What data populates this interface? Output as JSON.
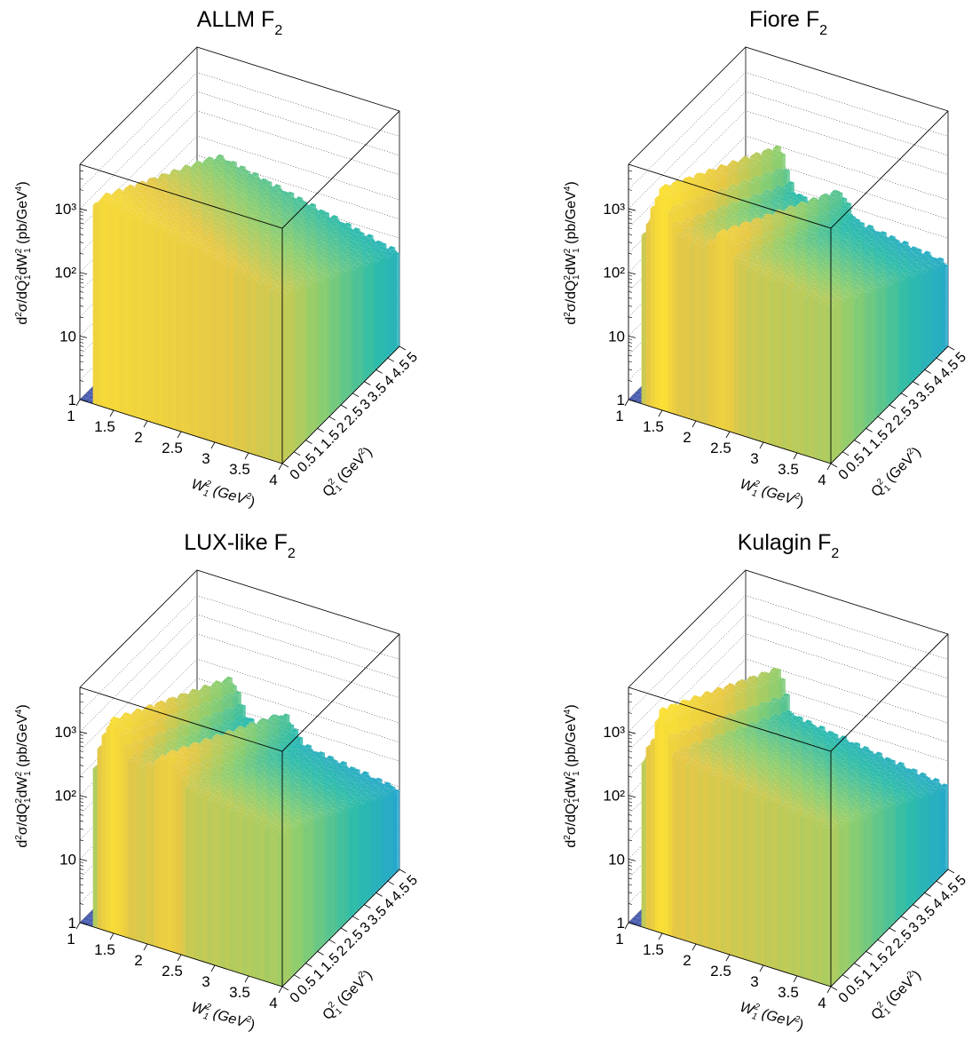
{
  "figure": {
    "panels": [
      {
        "title_main": "ALLM F",
        "title_sub": "2"
      },
      {
        "title_main": "Fiore F",
        "title_sub": "2"
      },
      {
        "title_main": "LUX-like F",
        "title_sub": "2"
      },
      {
        "title_main": "Kulagin F",
        "title_sub": "2"
      }
    ],
    "zlabel": {
      "p1": "d",
      "p1s": "2",
      "p2": "σ/dQ",
      "p2s1": "2",
      "p2s2": "1",
      "p3": "dW",
      "p3s1": "2",
      "p3s2": "1",
      "p4": " (pb/GeV",
      "p4s": "4",
      "p5": ")"
    },
    "xlabel": {
      "a": "W",
      "as1": "2",
      "as2": "1",
      "b": " (GeV",
      "bs": "2",
      "c": ")"
    },
    "ylabel": {
      "a": "Q",
      "as1": "2",
      "as2": "1",
      "b": " (GeV",
      "bs": "2",
      "c": ")"
    }
  },
  "chart_data": [
    {
      "type": "lego3d",
      "title": "ALLM F2",
      "xlabel": "W_1^2 (GeV^2)",
      "ylabel": "Q_1^2 (GeV^2)",
      "zlabel": "d^2σ/dQ_1^2dW_1^2 (pb/GeV^4)",
      "x_range": [
        1,
        4
      ],
      "y_range": [
        0,
        5
      ],
      "z_range": [
        1,
        5000
      ],
      "z_log": true,
      "x_ticks": [
        "1",
        "1.5",
        "2",
        "2.5",
        "3",
        "3.5",
        "4"
      ],
      "y_ticks": [
        "0",
        "0.5",
        "1",
        "1.5",
        "2",
        "2.5",
        "3",
        "3.5",
        "4",
        "4.5",
        "5"
      ],
      "z_ticks": [
        "1",
        "10",
        "10³",
        "10²"
      ],
      "peak": {
        "x": 1.2,
        "y": 0.1,
        "z": 2400
      },
      "shape_note": "sharp onset near W2=1.17, slowly falling plateau toward W2=4, falling with Q2"
    },
    {
      "type": "lego3d",
      "title": "Fiore F2",
      "xlabel": "W_1^2 (GeV^2)",
      "ylabel": "Q_1^2 (GeV^2)",
      "zlabel": "d^2σ/dQ_1^2dW_1^2 (pb/GeV^4)",
      "x_range": [
        1,
        4
      ],
      "y_range": [
        0,
        5
      ],
      "z_range": [
        1,
        5000
      ],
      "z_log": true,
      "x_ticks": [
        "1",
        "1.5",
        "2",
        "2.5",
        "3",
        "3.5",
        "4"
      ],
      "y_ticks": [
        "0",
        "0.5",
        "1",
        "1.5",
        "2",
        "2.5",
        "3",
        "3.5",
        "4",
        "4.5",
        "5"
      ],
      "z_ticks": [
        "1",
        "10",
        "10³",
        "10²"
      ],
      "peak": {
        "x": 1.5,
        "y": 0.1,
        "z": 3000
      },
      "shape_note": "resonance peak near W2=1.5 and secondary bump near W2=2.4"
    },
    {
      "type": "lego3d",
      "title": "LUX-like F2",
      "xlabel": "W_1^2 (GeV^2)",
      "ylabel": "Q_1^2 (GeV^2)",
      "zlabel": "d^2σ/dQ_1^2dW_1^2 (pb/GeV^4)",
      "x_range": [
        1,
        4
      ],
      "y_range": [
        0,
        5
      ],
      "z_range": [
        1,
        5000
      ],
      "z_log": true,
      "x_ticks": [
        "1",
        "1.5",
        "2",
        "2.5",
        "3",
        "3.5",
        "4"
      ],
      "y_ticks": [
        "0",
        "0.5",
        "1",
        "1.5",
        "2",
        "2.5",
        "3",
        "3.5",
        "4",
        "4.5",
        "5"
      ],
      "z_ticks": [
        "1",
        "10",
        "10³",
        "10²"
      ],
      "peak": {
        "x": 1.5,
        "y": 0.1,
        "z": 2500
      },
      "shape_note": "smooth resonance peak near W2=1.5 and secondary bump near W2=2.3"
    },
    {
      "type": "lego3d",
      "title": "Kulagin F2",
      "xlabel": "W_1^2 (GeV^2)",
      "ylabel": "Q_1^2 (GeV^2)",
      "zlabel": "d^2σ/dQ_1^2dW_1^2 (pb/GeV^4)",
      "x_range": [
        1,
        4
      ],
      "y_range": [
        0,
        5
      ],
      "z_range": [
        1,
        5000
      ],
      "z_log": true,
      "x_ticks": [
        "1",
        "1.5",
        "2",
        "2.5",
        "3",
        "3.5",
        "4"
      ],
      "y_ticks": [
        "0",
        "0.5",
        "1",
        "1.5",
        "2",
        "2.5",
        "3",
        "3.5",
        "4",
        "4.5",
        "5"
      ],
      "z_ticks": [
        "1",
        "10",
        "10³",
        "10²"
      ],
      "peak": {
        "x": 1.5,
        "y": 0.1,
        "z": 3300
      },
      "shape_note": "sharp resonance peak near W2=1.5, smooth falloff"
    }
  ]
}
